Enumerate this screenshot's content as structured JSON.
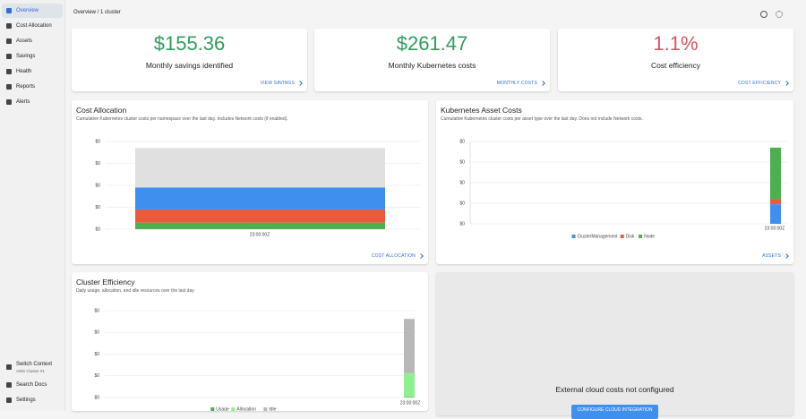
{
  "sidebar": {
    "nav": [
      "Overview",
      "Cost Allocation",
      "Assets",
      "Savings",
      "Health",
      "Reports",
      "Alerts"
    ],
    "context": {
      "label": "Switch Context",
      "value": "AWS Cluster #1"
    },
    "bottom": [
      "Search Docs",
      "Settings"
    ]
  },
  "header": {
    "breadcrumb": "Overview / 1 cluster"
  },
  "summary": [
    {
      "value": "$155.36",
      "label": "Monthly savings identified",
      "link": "VIEW SAVINGS",
      "color": "#2e9e5b"
    },
    {
      "value": "$261.47",
      "label": "Monthly Kubernetes costs",
      "link": "MONTHLY COSTS",
      "color": "#2e9e5b"
    },
    {
      "value": "1.1%",
      "label": "Cost efficiency",
      "link": "COST EFFICIENCY",
      "color": "#e0525f"
    }
  ],
  "chart_data": [
    {
      "type": "bar",
      "title": "Cost Allocation",
      "subtitle": "Cumulative Kubernetes cluster costs per namespace over the last day. Includes Network costs (if enabled).",
      "categories": [
        "23:00:00Z"
      ],
      "series": [
        {
          "color": "#4caf50",
          "values": [
            0.3
          ]
        },
        {
          "color": "#ea5a3c",
          "values": [
            0.6
          ]
        },
        {
          "color": "#3f8fef",
          "values": [
            1.0
          ]
        },
        {
          "color": "#e0e0e0",
          "values": [
            1.8
          ]
        }
      ],
      "ylim": [
        0,
        4
      ],
      "yticks": [
        {
          "value": 0,
          "label": "$0"
        },
        {
          "value": 1,
          "label": "$0"
        },
        {
          "value": 2,
          "label": "$0"
        },
        {
          "value": 3,
          "label": "$0"
        },
        {
          "value": 4,
          "label": "$0"
        }
      ],
      "grid": true,
      "link": "COST ALLOCATION"
    },
    {
      "type": "bar",
      "title": "Kubernetes Asset Costs",
      "subtitle": "Cumulative Kubernetes cluster costs per asset type over the last day. Does not include Network costs.",
      "categories": [
        "23:00:00Z"
      ],
      "series": [
        {
          "name": "ClusterManagement",
          "color": "#3f8fef",
          "values": [
            0.95
          ]
        },
        {
          "name": "Disk",
          "color": "#ea5a3c",
          "values": [
            0.25
          ]
        },
        {
          "name": "Node",
          "color": "#4caf50",
          "values": [
            2.5
          ]
        }
      ],
      "ylim": [
        0,
        4
      ],
      "yticks": [
        {
          "value": 0,
          "label": "$0"
        },
        {
          "value": 1,
          "label": "$0"
        },
        {
          "value": 2,
          "label": "$0"
        },
        {
          "value": 3,
          "label": "$0"
        },
        {
          "value": 4,
          "label": "$0"
        }
      ],
      "grid": true,
      "legend": "bottom",
      "link": "ASSETS"
    },
    {
      "type": "bar",
      "title": "Cluster Efficiency",
      "subtitle": "Daily usage, allocation, and idle resources over the last day",
      "categories": [
        "23:00:00Z"
      ],
      "series": [
        {
          "name": "Usage",
          "color": "#4caf50",
          "values": [
            0.02
          ]
        },
        {
          "name": "Allocation",
          "color": "#8ff08f",
          "values": [
            1.1
          ]
        },
        {
          "name": "Idle",
          "color": "#b8b8b8",
          "values": [
            2.5
          ]
        }
      ],
      "ylim": [
        0,
        4
      ],
      "yticks": [
        {
          "value": 0,
          "label": "$0"
        },
        {
          "value": 1,
          "label": "$0"
        },
        {
          "value": 2,
          "label": "$0"
        },
        {
          "value": 3,
          "label": "$0"
        },
        {
          "value": 4,
          "label": "$0"
        }
      ],
      "grid": true,
      "legend": "bottom"
    }
  ],
  "empty_card": {
    "message": "External cloud costs not configured",
    "button": "CONFIGURE CLOUD INTEGRATION"
  }
}
